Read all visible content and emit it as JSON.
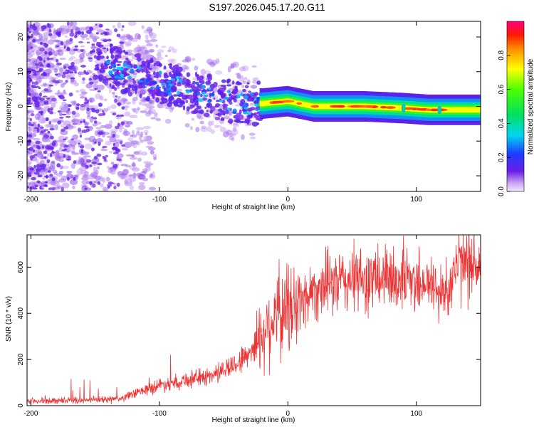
{
  "title": "S197.2026.045.17.20.G11",
  "chart_data": [
    {
      "type": "heatmap",
      "xlabel": "Height of straight line (km)",
      "ylabel": "Frequency (Hz)",
      "xlim": [
        -203,
        150
      ],
      "ylim": [
        -24.5,
        24.5
      ],
      "xticks": [
        -200,
        -100,
        0,
        100
      ],
      "yticks": [
        -20,
        -10,
        0,
        10,
        20
      ],
      "description_ridge": [
        {
          "x": -140,
          "y": 12
        },
        {
          "x": -120,
          "y": 9
        },
        {
          "x": -100,
          "y": 7
        },
        {
          "x": -80,
          "y": 5
        },
        {
          "x": -60,
          "y": 3
        },
        {
          "x": -40,
          "y": 1
        },
        {
          "x": -20,
          "y": 0.8
        },
        {
          "x": 0,
          "y": 1.5
        },
        {
          "x": 20,
          "y": 0
        },
        {
          "x": 60,
          "y": 0
        },
        {
          "x": 90,
          "y": -0.5
        },
        {
          "x": 110,
          "y": -1
        },
        {
          "x": 150,
          "y": -1
        }
      ],
      "colorbar": {
        "label": "Normalized spectral amplitude",
        "range": [
          0,
          1
        ],
        "ticks": [
          0.0,
          0.2,
          0.4,
          0.6,
          0.8
        ]
      }
    },
    {
      "type": "line",
      "xlabel": "Height of straight line (km)",
      "ylabel": "SNR (10 * v/v)",
      "xlim": [
        -203,
        150
      ],
      "ylim": [
        0,
        740
      ],
      "xticks": [
        -200,
        -100,
        0,
        100
      ],
      "yticks": [
        0,
        200,
        400,
        600
      ],
      "series": [
        {
          "name": "SNR",
          "color": "#ee3333",
          "x": [
            -203,
            -180,
            -150,
            -130,
            -120,
            -100,
            -80,
            -60,
            -40,
            -30,
            -22,
            -18,
            -15,
            -10,
            -5,
            0,
            10,
            15,
            20,
            30,
            50,
            70,
            90,
            95,
            100,
            110,
            120,
            125,
            130,
            140,
            150
          ],
          "y": [
            20,
            22,
            25,
            30,
            50,
            90,
            110,
            130,
            180,
            230,
            300,
            320,
            350,
            400,
            390,
            420,
            450,
            480,
            500,
            525,
            545,
            545,
            555,
            550,
            545,
            530,
            480,
            520,
            600,
            610,
            615
          ]
        }
      ]
    }
  ]
}
